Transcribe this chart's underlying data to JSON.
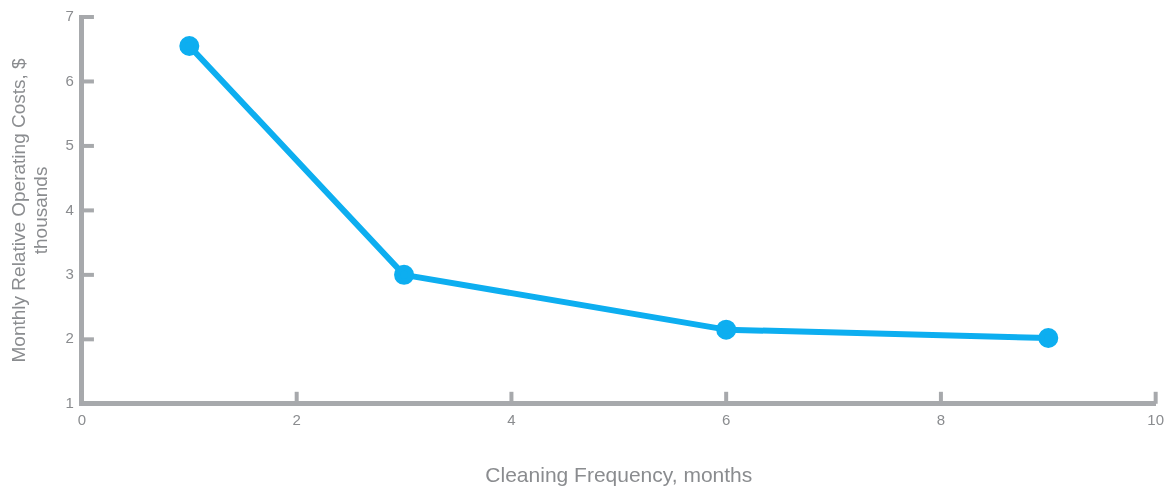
{
  "chart_data": {
    "type": "line",
    "xlabel": "Cleaning Frequency, months",
    "ylabel": "Monthly Relative Operating Costs, $ thousands",
    "x": [
      1,
      3,
      6,
      9
    ],
    "series": [
      {
        "color": "#0daef0",
        "values": [
          6.55,
          3.0,
          2.15,
          2.02
        ]
      }
    ],
    "xlim": [
      0,
      10
    ],
    "xticks": [
      0,
      2,
      4,
      6,
      8,
      10
    ],
    "ylim": [
      1,
      7
    ],
    "yticks": [
      1,
      2,
      3,
      4,
      5,
      6,
      7
    ],
    "grid": false,
    "legend": false,
    "marker": "circle",
    "line_style": "solid"
  }
}
